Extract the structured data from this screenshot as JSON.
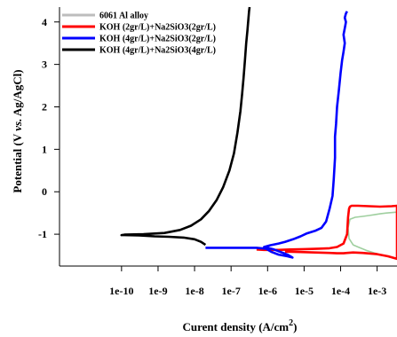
{
  "chart_data": {
    "type": "line",
    "xlabel_main": "Curent density (A/cm",
    "xlabel_sup": "2",
    "xlabel_close": ")",
    "ylabel_main": "Potential (V ",
    "ylabel_vs": "vs.",
    "ylabel_rest": " Ag/AgCl)",
    "x_scale": "log",
    "xlim": [
      2e-12,
      0.0035
    ],
    "ylim": [
      -1.75,
      4.35
    ],
    "x_ticks": [
      1e-10,
      1e-09,
      1e-08,
      1e-07,
      1e-06,
      1e-05,
      0.0001,
      0.001
    ],
    "x_tick_labels": [
      "1e-10",
      "1e-9",
      "1e-8",
      "1e-7",
      "1e-6",
      "1e-5",
      "1e-4",
      "1e-3"
    ],
    "y_ticks": [
      -1,
      0,
      1,
      2,
      3,
      4
    ],
    "y_tick_labels": [
      "-1",
      "0",
      "1",
      "2",
      "3",
      "4"
    ],
    "grid": false,
    "legend_position": "top-left",
    "series": [
      {
        "name": "6061 Al alloy",
        "color": "#9fcf9f",
        "legend_color": "#bdbdbd",
        "x": [
          0.0035,
          0.0025,
          0.0018,
          0.0012,
          0.00085,
          0.0006,
          0.0004,
          0.00025,
          0.00018,
          0.00016,
          0.00017,
          0.00022,
          0.0003,
          0.0005,
          0.0009,
          0.0018,
          0.0035
        ],
        "y": [
          -0.48,
          -0.49,
          -0.5,
          -0.52,
          -0.54,
          -0.56,
          -0.58,
          -0.6,
          -0.65,
          -0.85,
          -1.1,
          -1.25,
          -1.3,
          -1.38,
          -1.45,
          -1.52,
          -1.58
        ]
      },
      {
        "name": "KOH (2gr/L)+Na2SiO3(2gr/L)",
        "color": "#ff0000",
        "x": [
          5e-07,
          8e-07,
          1.2e-06,
          2e-06,
          4e-06,
          1e-05,
          2.5e-05,
          5e-05,
          8e-05,
          0.00012,
          0.00015,
          0.00016,
          0.00017,
          0.00018,
          0.0002,
          0.0003,
          0.0006,
          0.0012,
          0.0025,
          0.0035,
          0.0035,
          0.002,
          0.001,
          0.0004,
          0.00022,
          0.00015,
          0.00012,
          0.0001,
          8e-05,
          5e-05,
          2e-05,
          8e-06,
          3e-06
        ],
        "y": [
          -1.36,
          -1.37,
          -1.37,
          -1.37,
          -1.36,
          -1.35,
          -1.34,
          -1.33,
          -1.3,
          -1.22,
          -1.0,
          -0.6,
          -0.4,
          -0.35,
          -0.33,
          -0.33,
          -0.34,
          -0.35,
          -0.34,
          -0.33,
          -1.58,
          -1.52,
          -1.47,
          -1.44,
          -1.43,
          -1.44,
          -1.45,
          -1.45,
          -1.45,
          -1.44,
          -1.43,
          -1.42,
          -1.41
        ]
      },
      {
        "name": "KOH (4gr/L)+Na2SiO3(2gr/L)",
        "color": "#0000ff",
        "x": [
          2e-08,
          6e-08,
          2e-07,
          5e-07,
          9e-07,
          1.3e-06,
          2e-06,
          3.5e-06,
          4.8e-06,
          3.5e-06,
          1.5e-06,
          8e-07,
          1.2e-06,
          2e-06,
          3e-06,
          5e-06,
          8e-06,
          1.2e-05,
          2e-05,
          3e-05,
          4e-05,
          5e-05,
          6e-05,
          6.5e-05,
          7e-05,
          7e-05,
          7.5e-05,
          8e-05,
          9e-05,
          0.0001,
          0.00011,
          0.00012,
          0.00013,
          0.00012,
          0.00013,
          0.00014,
          0.00013,
          0.00014,
          0.00015
        ],
        "y": [
          -1.32,
          -1.32,
          -1.32,
          -1.32,
          -1.34,
          -1.42,
          -1.48,
          -1.52,
          -1.55,
          -1.48,
          -1.36,
          -1.3,
          -1.26,
          -1.22,
          -1.18,
          -1.12,
          -1.05,
          -0.98,
          -0.92,
          -0.85,
          -0.7,
          -0.4,
          -0.1,
          0.3,
          0.8,
          1.3,
          1.6,
          2.0,
          2.4,
          2.8,
          3.1,
          3.3,
          3.5,
          3.7,
          3.85,
          4.0,
          4.1,
          4.2,
          4.25
        ]
      },
      {
        "name": "KOH (4gr/L)+Na2SiO3(4gr/L)",
        "color": "#000000",
        "x": [
          2e-08,
          1.5e-08,
          1e-08,
          5e-09,
          2e-09,
          8e-10,
          3e-10,
          1.2e-10,
          1e-10,
          1.2e-10,
          4e-10,
          1.5e-09,
          4e-09,
          8e-09,
          1.5e-08,
          2.5e-08,
          4e-08,
          6e-08,
          9e-08,
          1.2e-07,
          1.5e-07,
          1.8e-07,
          2e-07,
          2.2e-07,
          2.4e-07,
          2.6e-07,
          2.8e-07,
          3e-07,
          3.1e-07,
          3.2e-07
        ],
        "y": [
          -1.25,
          -1.18,
          -1.12,
          -1.08,
          -1.06,
          -1.05,
          -1.03,
          -1.02,
          -1.02,
          -1.01,
          -1.0,
          -0.97,
          -0.9,
          -0.8,
          -0.65,
          -0.45,
          -0.2,
          0.1,
          0.5,
          0.9,
          1.4,
          1.9,
          2.3,
          2.7,
          3.1,
          3.5,
          3.8,
          4.1,
          4.25,
          4.35
        ]
      }
    ]
  }
}
